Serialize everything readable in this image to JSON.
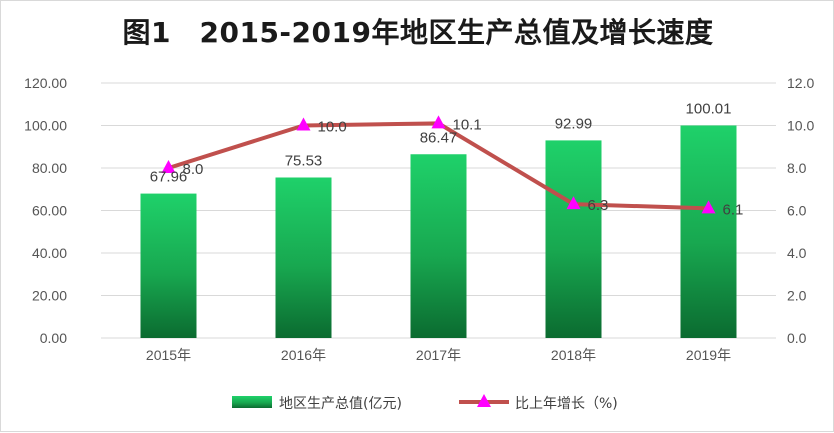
{
  "chart_data": {
    "type": "bar+line",
    "title": "图1　2015-2019年地区生产总值及增长速度",
    "categories": [
      "2015年",
      "2016年",
      "2017年",
      "2018年",
      "2019年"
    ],
    "series": [
      {
        "name": "地区生产总值(亿元)",
        "type": "bar",
        "axis": "left",
        "values": [
          67.96,
          75.53,
          86.47,
          92.99,
          100.01
        ],
        "labels": [
          "67.96",
          "75.53",
          "86.47",
          "92.99",
          "100.01"
        ],
        "color": "#1ec463"
      },
      {
        "name": "比上年增长（%)",
        "type": "line",
        "axis": "right",
        "values": [
          8.0,
          10.0,
          10.1,
          6.3,
          6.1
        ],
        "labels": [
          "8.0",
          "10.0",
          "10.1",
          "6.3",
          "6.1"
        ],
        "line_color": "#c0504d",
        "marker_color": "#ff00ff"
      }
    ],
    "y_left": {
      "ylim": [
        0,
        120
      ],
      "ticks": [
        "0.00",
        "20.00",
        "40.00",
        "60.00",
        "80.00",
        "100.00",
        "120.00"
      ]
    },
    "y_right": {
      "ylim": [
        0,
        12
      ],
      "ticks": [
        "0.0",
        "2.0",
        "4.0",
        "6.0",
        "8.0",
        "10.0",
        "12.0"
      ]
    },
    "grid": true,
    "legend": "bottom"
  }
}
